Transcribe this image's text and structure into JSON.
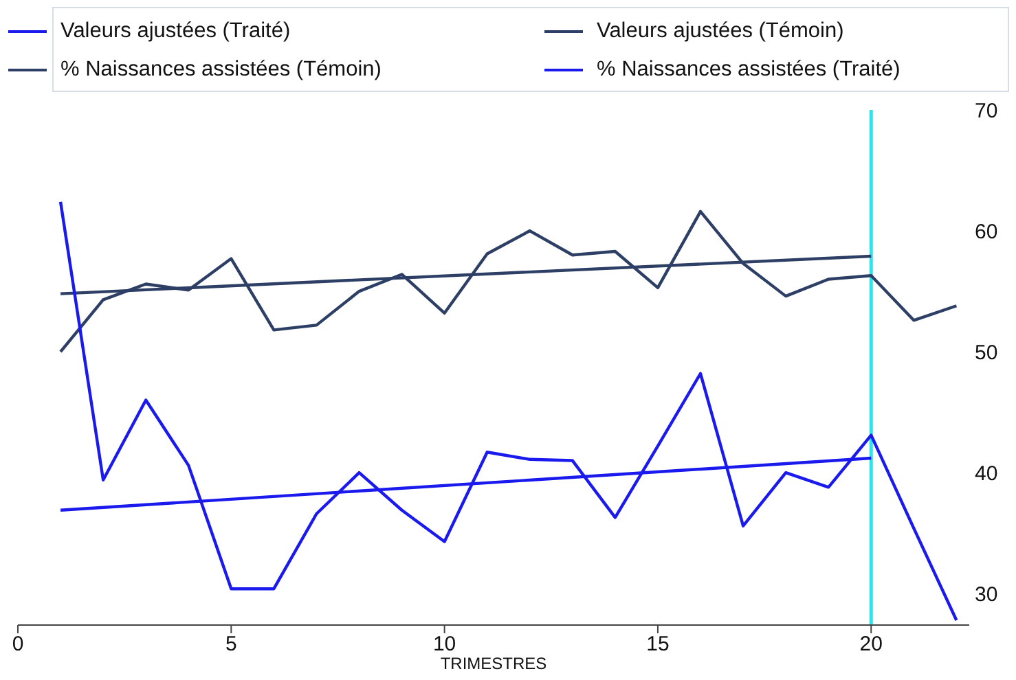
{
  "chart_data": {
    "type": "line",
    "xlabel": "TRIMESTRES",
    "xlim": [
      0,
      22.3
    ],
    "xticks": [
      0,
      5,
      10,
      15,
      20
    ],
    "ylim": [
      27.4,
      70
    ],
    "yticks": [
      30,
      40,
      50,
      60,
      70
    ],
    "grid": false,
    "legend": "top",
    "marker": "none",
    "line_style": "solid",
    "series": [
      {
        "name": "Valeurs ajustées (Traité)",
        "color": "#1a1aee",
        "x": [
          1,
          20
        ],
        "values": [
          36.9,
          41.2
        ]
      },
      {
        "name": "Valeurs ajustées (Témoin)",
        "color": "#2e3f66",
        "x": [
          1,
          20
        ],
        "values": [
          54.8,
          57.9
        ]
      },
      {
        "name": "% Naissances assistées (Témoin)",
        "color": "#2e3f66",
        "x": [
          1,
          2,
          3,
          4,
          5,
          6,
          7,
          8,
          9,
          10,
          11,
          12,
          13,
          14,
          15,
          16,
          17,
          18,
          19,
          20,
          21,
          22
        ],
        "values": [
          50,
          54.3,
          55.6,
          55.1,
          57.7,
          51.8,
          52.2,
          55,
          56.4,
          53.2,
          58.1,
          60,
          58,
          58.3,
          55.3,
          61.6,
          57.3,
          54.6,
          56,
          56.3,
          52.6,
          53.8
        ]
      },
      {
        "name": "% Naissances assistées (Traité)",
        "color": "#1a1aee",
        "x": [
          1,
          2,
          3,
          4,
          5,
          6,
          7,
          8,
          9,
          10,
          11,
          12,
          13,
          14,
          15,
          16,
          17,
          18,
          19,
          20,
          21,
          22
        ],
        "values": [
          62.4,
          39.4,
          46,
          40.6,
          30.4,
          30.4,
          36.6,
          40,
          36.9,
          34.3,
          41.7,
          41.1,
          41,
          36.3,
          42.2,
          48.2,
          35.6,
          40,
          38.8,
          43.1,
          35.4,
          27.8
        ]
      }
    ],
    "ref_lines": [
      {
        "axis": "x",
        "value": 20,
        "color": "#22e8f0"
      }
    ]
  }
}
